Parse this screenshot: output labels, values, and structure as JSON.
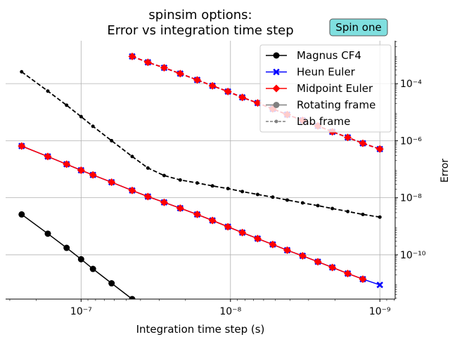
{
  "chart_data": {
    "type": "line",
    "title": "spinsim options:",
    "subtitle": "Error vs integration time step",
    "xlabel": "Integration time step (s)",
    "ylabel": "Error",
    "xscale": "log",
    "yscale": "log",
    "x_axis_inverted": true,
    "x_axis_direction": "decreasing left to right",
    "y_axis_position": "right",
    "xlim": [
      3.2e-07,
      7.9e-10
    ],
    "ylim": [
      2.8e-12,
      0.0032
    ],
    "x_ticks": [
      {
        "value": 1e-07,
        "label": "10⁻⁷"
      },
      {
        "value": 1e-08,
        "label": "10⁻⁸"
      },
      {
        "value": 1e-09,
        "label": "10⁻⁹"
      }
    ],
    "y_ticks": [
      {
        "value": 0.0001,
        "label": "10⁻⁴"
      },
      {
        "value": 1e-06,
        "label": "10⁻⁶"
      },
      {
        "value": 1e-08,
        "label": "10⁻⁸"
      },
      {
        "value": 1e-10,
        "label": "10⁻¹⁰"
      }
    ],
    "grid": true,
    "legend_position": "top-right",
    "annotation": "Spin one",
    "annotation_color": "#7fdfdf",
    "legend": [
      {
        "label": "Magnus CF4",
        "color": "#000000",
        "marker": "circle",
        "linestyle": "solid"
      },
      {
        "label": "Heun Euler",
        "color": "#0000ff",
        "marker": "x",
        "linestyle": "solid"
      },
      {
        "label": "Midpoint Euler",
        "color": "#ff0000",
        "marker": "diamond",
        "linestyle": "solid"
      },
      {
        "label": "Rotating frame",
        "color": "#808080",
        "marker": "circle",
        "linestyle": "solid"
      },
      {
        "label": "Lab frame",
        "color": "#808080",
        "marker": "small-circle",
        "linestyle": "dashed"
      }
    ],
    "series": [
      {
        "name": "Magnus CF4",
        "frame": "Rotating frame",
        "color": "#000000",
        "marker": "circle",
        "linestyle": "solid",
        "x": [
          2.5e-07,
          1.67e-07,
          1.25e-07,
          1e-07,
          8.33e-08,
          6.25e-08,
          4.55e-08,
          3.57e-08
        ],
        "y": [
          2.6e-09,
          5.5e-10,
          1.75e-10,
          7e-11,
          3.2e-11,
          1e-11,
          2.8e-12,
          1.1e-12
        ]
      },
      {
        "name": "Heun Euler",
        "frame": "Rotating frame",
        "color": "#0000ff",
        "marker": "x",
        "linestyle": "solid",
        "x": [
          2.5e-07,
          1.67e-07,
          1.25e-07,
          1e-07,
          8.33e-08,
          6.25e-08,
          4.55e-08,
          3.57e-08,
          2.78e-08,
          2.17e-08,
          1.67e-08,
          1.32e-08,
          1.04e-08,
          8.33e-09,
          6.58e-09,
          5.21e-09,
          4.17e-09,
          3.29e-09,
          2.6e-09,
          2.08e-09,
          1.64e-09,
          1.3e-09,
          1e-09
        ],
        "y": [
          6.5e-07,
          2.8e-07,
          1.5e-07,
          9.2e-08,
          6.3e-08,
          3.5e-08,
          1.8e-08,
          1.1e-08,
          6.9e-09,
          4.3e-09,
          2.6e-09,
          1.6e-09,
          9.6e-10,
          6e-10,
          3.7e-10,
          2.3e-10,
          1.45e-10,
          9.2e-11,
          5.7e-11,
          3.6e-11,
          2.2e-11,
          1.4e-11,
          8.8e-12
        ]
      },
      {
        "name": "Midpoint Euler",
        "frame": "Rotating frame",
        "color": "#ff0000",
        "marker": "diamond",
        "linestyle": "solid",
        "x": [
          2.5e-07,
          1.67e-07,
          1.25e-07,
          1e-07,
          8.33e-08,
          6.25e-08,
          4.55e-08,
          3.57e-08,
          2.78e-08,
          2.17e-08,
          1.67e-08,
          1.32e-08,
          1.04e-08,
          8.33e-09,
          6.58e-09,
          5.21e-09,
          4.17e-09,
          3.29e-09,
          2.6e-09,
          2.08e-09,
          1.64e-09,
          1.3e-09
        ],
        "y": [
          6.5e-07,
          2.8e-07,
          1.5e-07,
          9.2e-08,
          6.3e-08,
          3.5e-08,
          1.8e-08,
          1.1e-08,
          6.9e-09,
          4.3e-09,
          2.6e-09,
          1.6e-09,
          9.6e-10,
          6e-10,
          3.7e-10,
          2.3e-10,
          1.45e-10,
          9.2e-11,
          5.7e-11,
          3.6e-11,
          2.2e-11,
          1.4e-11
        ]
      },
      {
        "name": "Magnus CF4",
        "frame": "Lab frame",
        "color": "#000000",
        "marker": "small-circle",
        "linestyle": "dashed",
        "x": [
          2.5e-07,
          1.67e-07,
          1.25e-07,
          1e-07,
          8.33e-08,
          6.25e-08,
          4.55e-08,
          3.57e-08,
          2.78e-08,
          2.17e-08,
          1.67e-08,
          1.32e-08,
          1.04e-08,
          8.33e-09,
          6.58e-09,
          5.21e-09,
          4.17e-09,
          3.29e-09,
          2.6e-09,
          2.08e-09,
          1.64e-09,
          1.3e-09,
          1e-09
        ],
        "y": [
          0.00026,
          5.5e-05,
          1.75e-05,
          7e-06,
          3.2e-06,
          1e-06,
          2.8e-07,
          1.1e-07,
          6e-08,
          4.2e-08,
          3.3e-08,
          2.6e-08,
          2.1e-08,
          1.65e-08,
          1.3e-08,
          1.05e-08,
          8.3e-09,
          6.6e-09,
          5.3e-09,
          4.2e-09,
          3.3e-09,
          2.6e-09,
          2.1e-09
        ]
      },
      {
        "name": "Heun Euler",
        "frame": "Lab frame",
        "color": "#0000ff",
        "marker": "x",
        "linestyle": "dashed",
        "x": [
          4.55e-08,
          3.57e-08,
          2.78e-08,
          2.17e-08,
          1.67e-08,
          1.32e-08,
          1.04e-08,
          8.33e-09,
          6.58e-09,
          5.21e-09,
          4.17e-09,
          3.29e-09,
          2.6e-09,
          2.08e-09,
          1.64e-09,
          1.3e-09,
          1e-09
        ],
        "y": [
          0.0009,
          0.00056,
          0.00036,
          0.000225,
          0.000135,
          8.4e-05,
          5.3e-05,
          3.3e-05,
          2.1e-05,
          1.3e-05,
          8.2e-06,
          5.2e-06,
          3.3e-06,
          2.05e-06,
          1.3e-06,
          8.1e-07,
          5.1e-07
        ]
      },
      {
        "name": "Midpoint Euler",
        "frame": "Lab frame",
        "color": "#ff0000",
        "marker": "diamond",
        "linestyle": "dashed",
        "x": [
          4.55e-08,
          3.57e-08,
          2.78e-08,
          2.17e-08,
          1.67e-08,
          1.32e-08,
          1.04e-08,
          8.33e-09,
          6.58e-09,
          5.21e-09,
          4.17e-09,
          3.29e-09,
          2.6e-09,
          2.08e-09,
          1.64e-09,
          1.3e-09,
          1e-09
        ],
        "y": [
          0.0009,
          0.00056,
          0.00036,
          0.000225,
          0.000135,
          8.4e-05,
          5.3e-05,
          3.3e-05,
          2.1e-05,
          1.3e-05,
          8.2e-06,
          5.2e-06,
          3.3e-06,
          2.05e-06,
          1.3e-06,
          8.1e-07,
          5.1e-07
        ]
      }
    ]
  }
}
